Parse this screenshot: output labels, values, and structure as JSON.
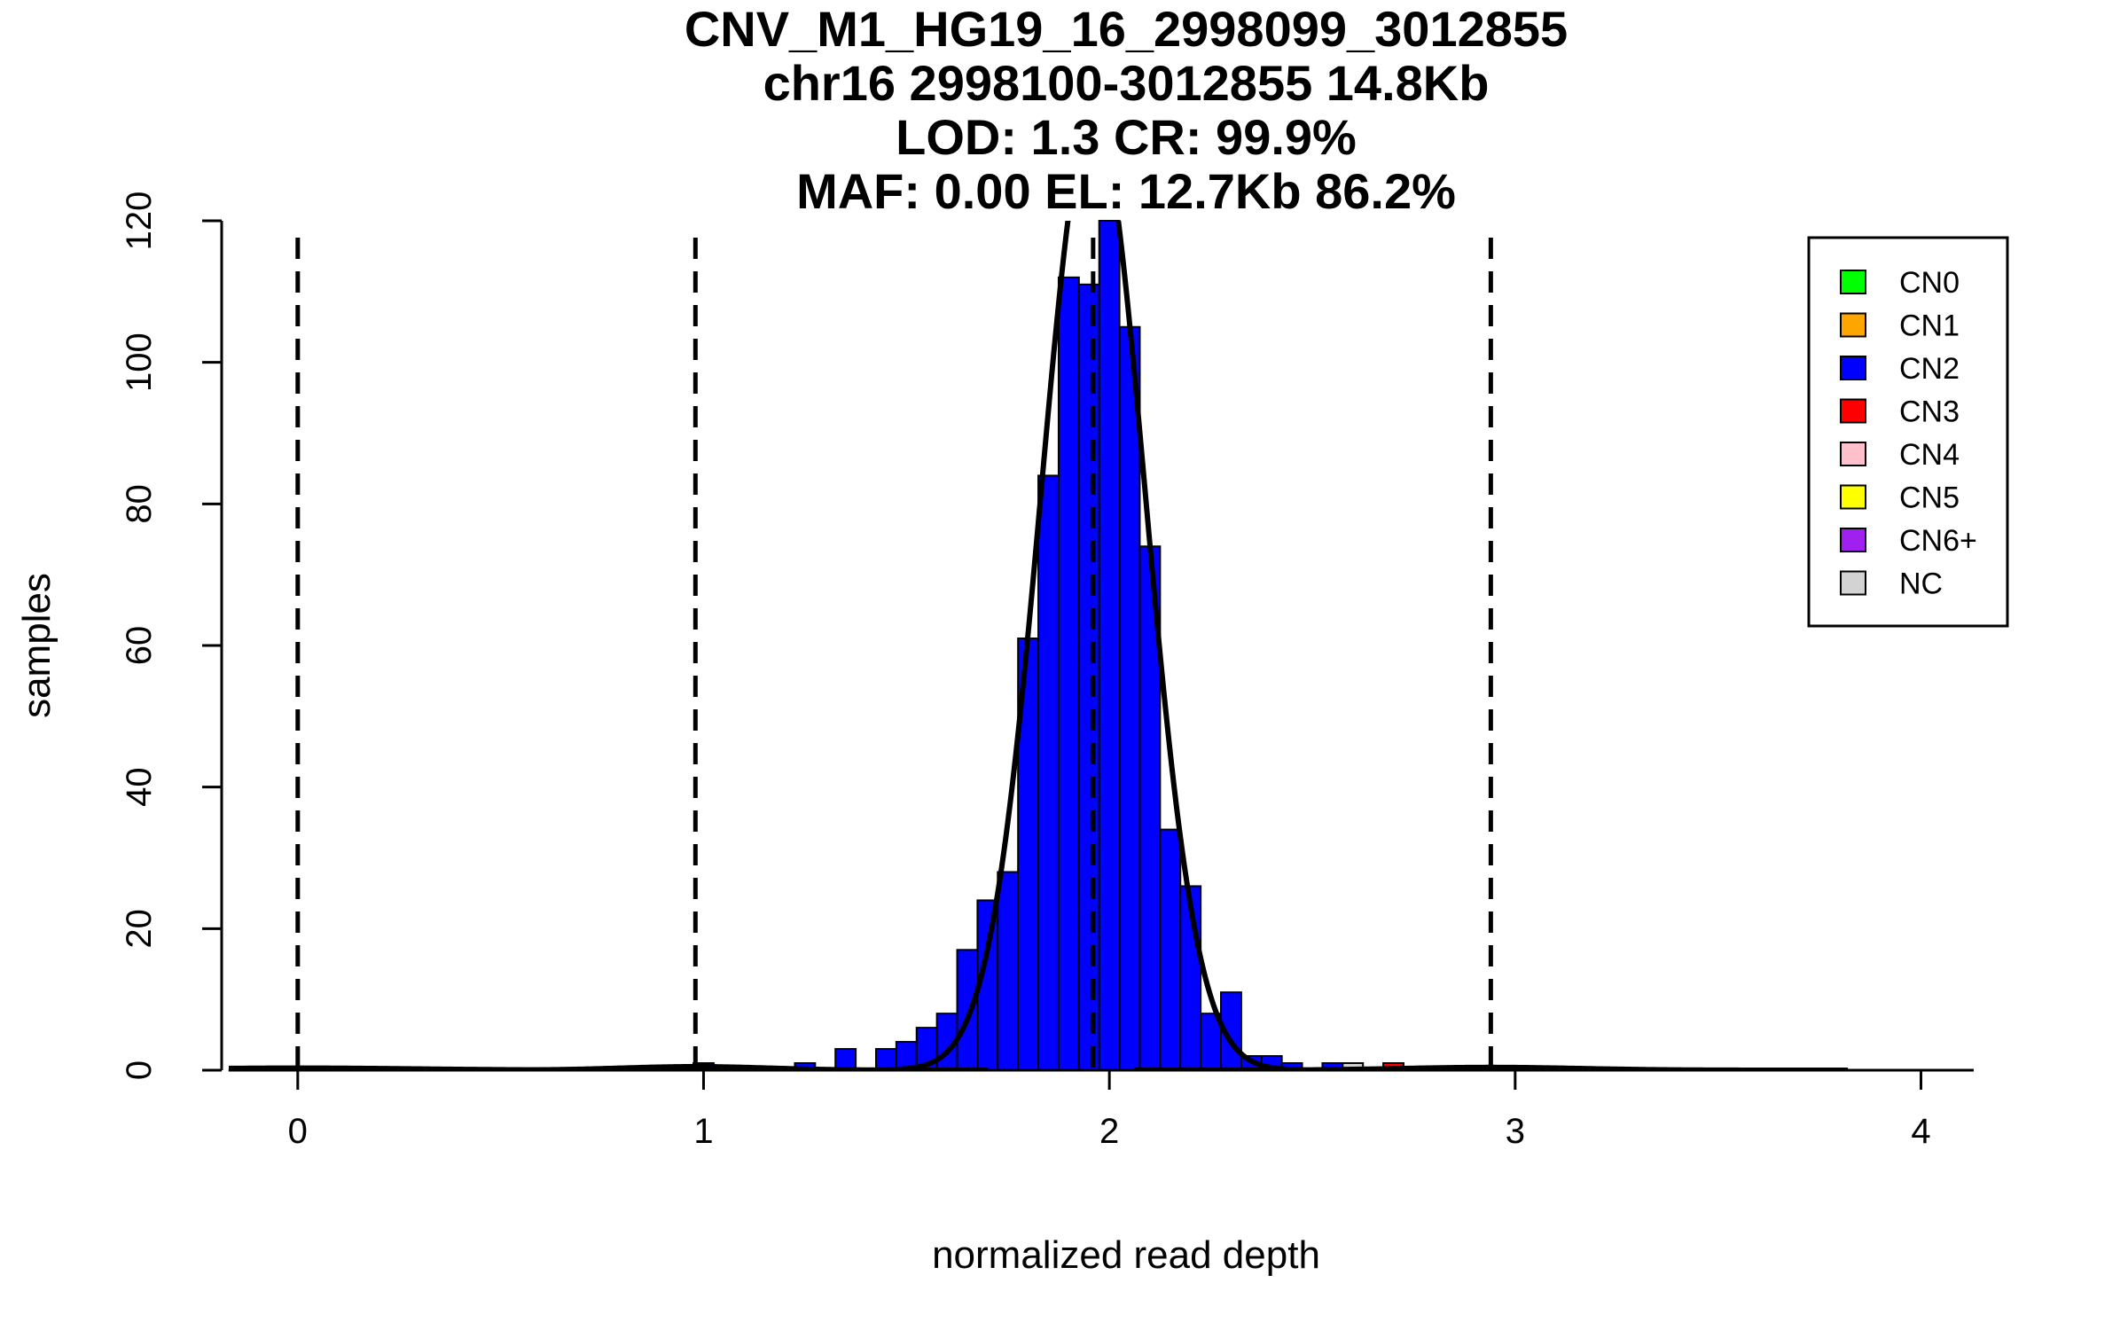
{
  "chart_data": {
    "type": "histogram",
    "title_lines": [
      "CNV_M1_HG19_16_2998099_3012855",
      "chr16 2998100-3012855 14.8Kb",
      "LOD: 1.3 CR: 99.9%",
      "MAF: 0.00 EL: 12.7Kb 86.2%"
    ],
    "xlabel": "normalized read depth",
    "ylabel": "samples",
    "xlim": [
      -0.17,
      4.13
    ],
    "ylim": [
      0,
      120
    ],
    "x_ticks": [
      0,
      1,
      2,
      3,
      4
    ],
    "x_tick_labels": [
      "0",
      "1",
      "2",
      "3",
      "4"
    ],
    "y_ticks": [
      0,
      20,
      40,
      60,
      80,
      100,
      120
    ],
    "y_tick_labels": [
      "0",
      "20",
      "40",
      "60",
      "80",
      "100",
      "120"
    ],
    "bin_width": 0.05,
    "bins": [
      {
        "x0": 0.975,
        "count": 1,
        "cn": "CN2"
      },
      {
        "x0": 1.225,
        "count": 1,
        "cn": "CN2"
      },
      {
        "x0": 1.325,
        "count": 3,
        "cn": "CN2"
      },
      {
        "x0": 1.425,
        "count": 3,
        "cn": "CN2"
      },
      {
        "x0": 1.475,
        "count": 4,
        "cn": "CN2"
      },
      {
        "x0": 1.525,
        "count": 6,
        "cn": "CN2"
      },
      {
        "x0": 1.575,
        "count": 8,
        "cn": "CN2"
      },
      {
        "x0": 1.625,
        "count": 17,
        "cn": "CN2"
      },
      {
        "x0": 1.675,
        "count": 24,
        "cn": "CN2"
      },
      {
        "x0": 1.725,
        "count": 28,
        "cn": "CN2"
      },
      {
        "x0": 1.775,
        "count": 61,
        "cn": "CN2"
      },
      {
        "x0": 1.825,
        "count": 84,
        "cn": "CN2"
      },
      {
        "x0": 1.875,
        "count": 112,
        "cn": "CN2"
      },
      {
        "x0": 1.925,
        "count": 111,
        "cn": "CN2"
      },
      {
        "x0": 1.975,
        "count": 120,
        "cn": "CN2"
      },
      {
        "x0": 2.025,
        "count": 105,
        "cn": "CN2"
      },
      {
        "x0": 2.075,
        "count": 74,
        "cn": "CN2"
      },
      {
        "x0": 2.125,
        "count": 34,
        "cn": "CN2"
      },
      {
        "x0": 2.175,
        "count": 26,
        "cn": "CN2"
      },
      {
        "x0": 2.225,
        "count": 8,
        "cn": "CN2"
      },
      {
        "x0": 2.275,
        "count": 11,
        "cn": "CN2"
      },
      {
        "x0": 2.325,
        "count": 2,
        "cn": "CN2"
      },
      {
        "x0": 2.375,
        "count": 2,
        "cn": "CN2"
      },
      {
        "x0": 2.425,
        "count": 1,
        "cn": "CN2"
      },
      {
        "x0": 2.525,
        "count": 1,
        "cn": "CN2"
      },
      {
        "x0": 2.575,
        "count": 1,
        "cn": "NC"
      },
      {
        "x0": 2.675,
        "count": 1,
        "cn": "CN3"
      }
    ],
    "fit_curves": [
      {
        "name": "CN0",
        "mean": 0.0,
        "sd": 0.3,
        "peak": 0.3
      },
      {
        "name": "CN1",
        "mean": 0.98,
        "sd": 0.18,
        "peak": 0.5
      },
      {
        "name": "CN2",
        "mean": 1.96,
        "sd": 0.128,
        "peak": 135
      },
      {
        "name": "CN3",
        "mean": 2.94,
        "sd": 0.22,
        "peak": 0.4
      }
    ],
    "thresholds": [
      0.0,
      0.98,
      1.96,
      2.94
    ],
    "legend_position": "top-right",
    "legend": [
      {
        "label": "CN0",
        "color": "#00ff00"
      },
      {
        "label": "CN1",
        "color": "#ffa500"
      },
      {
        "label": "CN2",
        "color": "#0000ff"
      },
      {
        "label": "CN3",
        "color": "#ff0000"
      },
      {
        "label": "CN4",
        "color": "#ffc0cb"
      },
      {
        "label": "CN5",
        "color": "#ffff00"
      },
      {
        "label": "CN6+",
        "color": "#a020f0"
      },
      {
        "label": "NC",
        "color": "#d3d3d3"
      }
    ]
  }
}
